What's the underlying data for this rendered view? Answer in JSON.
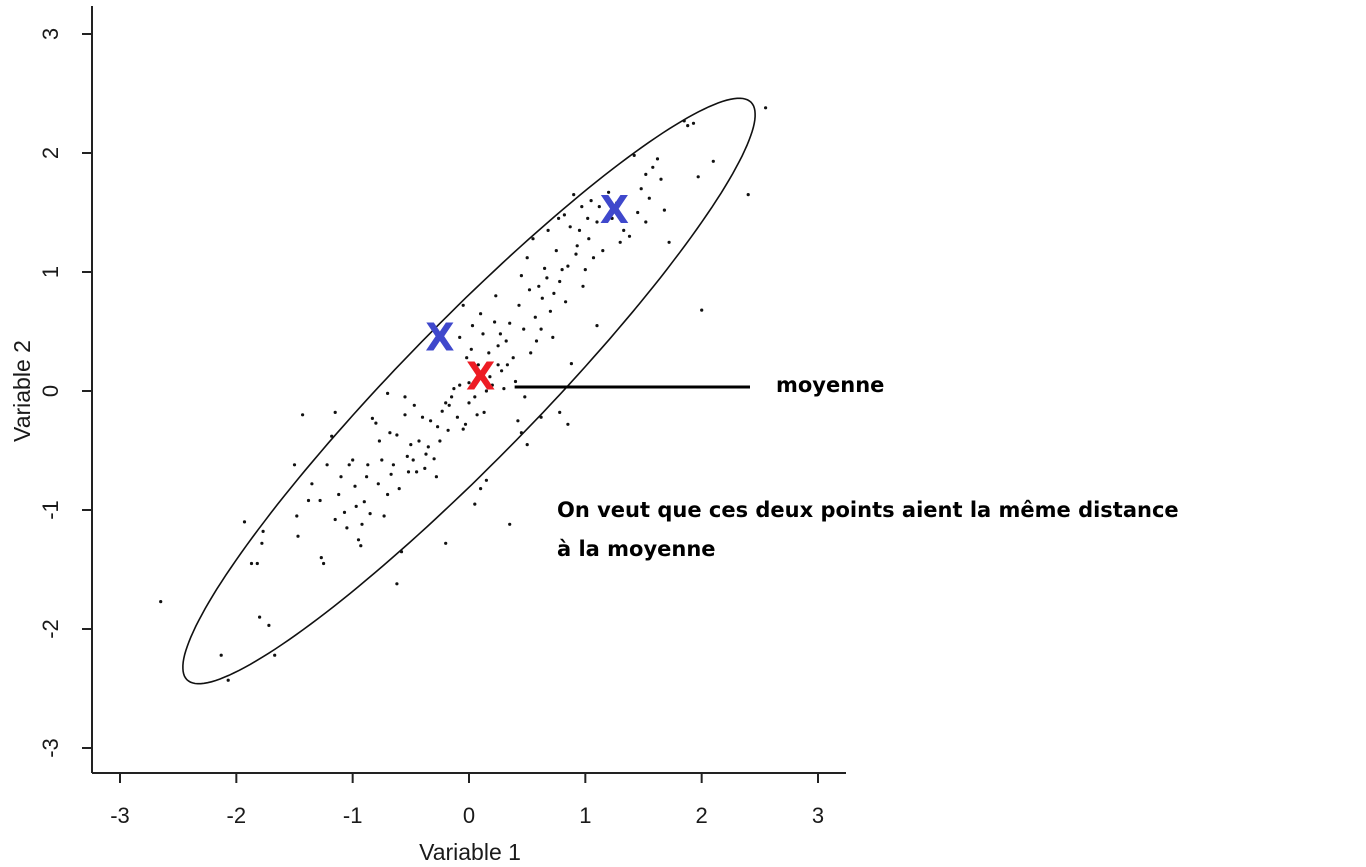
{
  "chart_data": {
    "type": "scatter",
    "xlabel": "Variable 1",
    "ylabel": "Variable 2",
    "xlim": [
      -3,
      3
    ],
    "ylim": [
      -3,
      3
    ],
    "xticks": [
      -3,
      -2,
      -1,
      0,
      1,
      2,
      3
    ],
    "yticks": [
      -3,
      -2,
      -1,
      0,
      1,
      2,
      3
    ],
    "grid": false,
    "ellipse": {
      "center": [
        0.0,
        0.0
      ],
      "angle_deg": 45,
      "semi_major": 3.43,
      "semi_minor": 0.58
    },
    "markers": [
      {
        "label": "X",
        "x": -0.25,
        "y": 0.45,
        "color": "#3f48cc",
        "role": "blue-point-1"
      },
      {
        "label": "X",
        "x": 1.25,
        "y": 1.52,
        "color": "#3f48cc",
        "role": "blue-point-2"
      },
      {
        "label": "X",
        "x": 0.1,
        "y": 0.12,
        "color": "#ed1c24",
        "role": "mean"
      }
    ],
    "annotations": {
      "mean_label": "moyenne",
      "note_line1": "On veut que ces deux points aient la même distance",
      "note_line2": "à la moyenne"
    },
    "points": [
      [
        -2.65,
        -1.77
      ],
      [
        -2.07,
        -2.43
      ],
      [
        -2.13,
        -2.22
      ],
      [
        -1.87,
        -1.45
      ],
      [
        -1.82,
        -1.45
      ],
      [
        -1.78,
        -1.28
      ],
      [
        -1.77,
        -1.18
      ],
      [
        -1.8,
        -1.9
      ],
      [
        -1.72,
        -1.97
      ],
      [
        -1.67,
        -2.22
      ],
      [
        -1.93,
        -1.1
      ],
      [
        -1.5,
        -0.62
      ],
      [
        -1.48,
        -1.05
      ],
      [
        -1.47,
        -1.22
      ],
      [
        -1.43,
        -0.2
      ],
      [
        -1.38,
        -0.92
      ],
      [
        -1.35,
        -0.78
      ],
      [
        -1.27,
        -1.4
      ],
      [
        -1.25,
        -1.45
      ],
      [
        -1.22,
        -0.62
      ],
      [
        -1.18,
        -0.38
      ],
      [
        -1.15,
        -0.18
      ],
      [
        -1.15,
        -1.08
      ],
      [
        -1.12,
        -0.87
      ],
      [
        -1.1,
        -0.72
      ],
      [
        -1.07,
        -1.02
      ],
      [
        -1.05,
        -1.15
      ],
      [
        -1.03,
        -0.62
      ],
      [
        -1.0,
        -0.58
      ],
      [
        -0.98,
        -0.8
      ],
      [
        -0.97,
        -0.97
      ],
      [
        -0.95,
        -1.25
      ],
      [
        -0.93,
        -1.3
      ],
      [
        -0.9,
        -0.93
      ],
      [
        -0.88,
        -0.72
      ],
      [
        -0.87,
        -0.62
      ],
      [
        -0.85,
        -1.03
      ],
      [
        -0.83,
        -0.23
      ],
      [
        -0.8,
        -0.27
      ],
      [
        -0.78,
        -0.78
      ],
      [
        -0.77,
        -0.42
      ],
      [
        -0.75,
        -0.58
      ],
      [
        -0.73,
        -1.05
      ],
      [
        -0.7,
        -0.87
      ],
      [
        -0.68,
        -0.35
      ],
      [
        -0.67,
        -0.7
      ],
      [
        -0.65,
        -0.62
      ],
      [
        -0.62,
        -0.37
      ],
      [
        -0.6,
        -0.82
      ],
      [
        -0.58,
        -1.35
      ],
      [
        -0.55,
        -0.05
      ],
      [
        -0.53,
        -0.55
      ],
      [
        -0.52,
        -0.68
      ],
      [
        -0.5,
        -0.45
      ],
      [
        -0.48,
        -0.58
      ],
      [
        -0.47,
        -0.12
      ],
      [
        -0.45,
        -0.68
      ],
      [
        -0.43,
        -0.42
      ],
      [
        -0.4,
        -0.22
      ],
      [
        -0.38,
        -0.65
      ],
      [
        -0.37,
        -0.53
      ],
      [
        -0.35,
        -0.47
      ],
      [
        -0.33,
        -0.25
      ],
      [
        -0.3,
        -0.57
      ],
      [
        -0.28,
        -0.72
      ],
      [
        -0.27,
        -0.3
      ],
      [
        -0.25,
        -0.42
      ],
      [
        -0.23,
        -0.17
      ],
      [
        -0.2,
        -0.1
      ],
      [
        -0.18,
        -0.33
      ],
      [
        -0.17,
        -0.12
      ],
      [
        -0.15,
        -0.05
      ],
      [
        -0.13,
        0.02
      ],
      [
        -0.1,
        -0.22
      ],
      [
        -0.08,
        0.05
      ],
      [
        -0.05,
        0.72
      ],
      [
        -0.03,
        -0.28
      ],
      [
        -0.02,
        0.28
      ],
      [
        0.0,
        0.07
      ],
      [
        0.02,
        0.35
      ],
      [
        0.03,
        0.55
      ],
      [
        0.05,
        -0.05
      ],
      [
        0.07,
        -0.2
      ],
      [
        0.08,
        0.22
      ],
      [
        0.1,
        0.65
      ],
      [
        0.12,
        0.48
      ],
      [
        0.13,
        -0.18
      ],
      [
        0.15,
        0.0
      ],
      [
        0.17,
        0.32
      ],
      [
        0.18,
        0.12
      ],
      [
        0.2,
        0.05
      ],
      [
        0.22,
        0.58
      ],
      [
        0.23,
        0.8
      ],
      [
        0.25,
        0.38
      ],
      [
        0.27,
        0.48
      ],
      [
        0.28,
        0.17
      ],
      [
        0.3,
        0.02
      ],
      [
        0.32,
        0.42
      ],
      [
        0.33,
        0.22
      ],
      [
        0.35,
        0.57
      ],
      [
        0.38,
        0.28
      ],
      [
        0.4,
        0.08
      ],
      [
        0.42,
        -0.25
      ],
      [
        0.43,
        0.72
      ],
      [
        0.45,
        0.97
      ],
      [
        0.47,
        0.52
      ],
      [
        0.48,
        -0.05
      ],
      [
        0.5,
        1.12
      ],
      [
        0.52,
        0.85
      ],
      [
        0.53,
        0.32
      ],
      [
        0.55,
        1.28
      ],
      [
        0.57,
        0.62
      ],
      [
        0.58,
        0.42
      ],
      [
        0.6,
        0.88
      ],
      [
        0.62,
        0.52
      ],
      [
        0.63,
        0.78
      ],
      [
        0.65,
        1.03
      ],
      [
        0.67,
        0.95
      ],
      [
        0.68,
        1.35
      ],
      [
        0.7,
        0.67
      ],
      [
        0.72,
        0.45
      ],
      [
        0.73,
        0.82
      ],
      [
        0.75,
        1.18
      ],
      [
        0.77,
        1.45
      ],
      [
        0.78,
        0.92
      ],
      [
        0.8,
        1.02
      ],
      [
        0.82,
        1.48
      ],
      [
        0.83,
        0.75
      ],
      [
        0.85,
        1.05
      ],
      [
        0.87,
        1.38
      ],
      [
        0.88,
        0.23
      ],
      [
        0.9,
        1.65
      ],
      [
        0.92,
        1.15
      ],
      [
        0.93,
        1.22
      ],
      [
        0.95,
        1.35
      ],
      [
        0.97,
        1.55
      ],
      [
        0.98,
        0.88
      ],
      [
        1.0,
        1.02
      ],
      [
        1.02,
        1.45
      ],
      [
        1.03,
        1.28
      ],
      [
        1.05,
        1.6
      ],
      [
        1.07,
        1.12
      ],
      [
        1.1,
        1.42
      ],
      [
        1.12,
        1.55
      ],
      [
        1.15,
        1.18
      ],
      [
        1.2,
        1.67
      ],
      [
        1.23,
        1.45
      ],
      [
        1.27,
        1.58
      ],
      [
        1.3,
        1.25
      ],
      [
        1.33,
        1.35
      ],
      [
        1.38,
        1.3
      ],
      [
        1.42,
        1.98
      ],
      [
        1.45,
        1.5
      ],
      [
        1.48,
        1.7
      ],
      [
        1.52,
        1.82
      ],
      [
        1.55,
        1.62
      ],
      [
        1.58,
        1.88
      ],
      [
        1.62,
        1.95
      ],
      [
        1.65,
        1.78
      ],
      [
        1.68,
        1.52
      ],
      [
        1.72,
        1.25
      ],
      [
        1.85,
        2.27
      ],
      [
        1.88,
        2.23
      ],
      [
        1.93,
        2.25
      ],
      [
        1.97,
        1.8
      ],
      [
        2.0,
        0.68
      ],
      [
        2.1,
        1.93
      ],
      [
        2.4,
        1.65
      ],
      [
        2.55,
        2.38
      ],
      [
        -0.2,
        -1.28
      ],
      [
        0.05,
        -0.95
      ],
      [
        0.1,
        -0.82
      ],
      [
        0.35,
        -1.12
      ],
      [
        0.45,
        -0.35
      ],
      [
        0.5,
        -0.45
      ],
      [
        0.62,
        -0.22
      ],
      [
        0.78,
        -0.18
      ],
      [
        0.85,
        -0.28
      ],
      [
        0.15,
        -0.75
      ],
      [
        -0.05,
        -0.32
      ],
      [
        -0.62,
        -1.62
      ],
      [
        -1.28,
        -0.92
      ],
      [
        -0.92,
        -1.12
      ],
      [
        -0.7,
        -0.02
      ],
      [
        -0.55,
        -0.2
      ],
      [
        -0.08,
        0.45
      ],
      [
        0.0,
        -0.1
      ],
      [
        0.25,
        0.22
      ],
      [
        1.52,
        1.42
      ],
      [
        1.1,
        0.55
      ]
    ]
  }
}
